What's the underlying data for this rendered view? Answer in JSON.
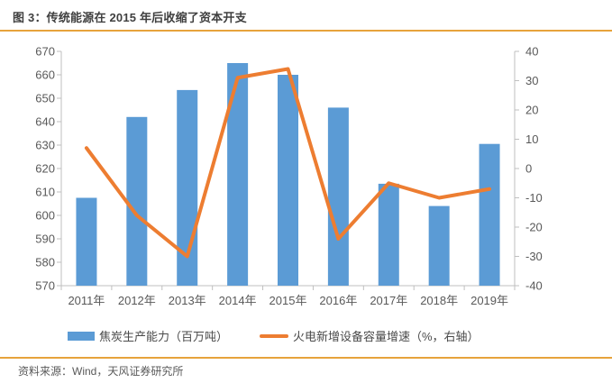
{
  "title": "图 3：传统能源在 2015 年后收缩了资本开支",
  "footer": {
    "source": "资料来源：Wind，天风证券研究所"
  },
  "colors": {
    "bar": "#5B9BD5",
    "line": "#ED7D31",
    "divider": "#E7A33C",
    "axis_line": "#BFBFBF",
    "tick_text": "#595959",
    "title_text": "#3F3F3F"
  },
  "chart_data": {
    "type": "bar",
    "subtype": "bar-and-line-dual-axis",
    "categories": [
      "2011年",
      "2012年",
      "2013年",
      "2014年",
      "2015年",
      "2016年",
      "2017年",
      "2018年",
      "2019年"
    ],
    "series": [
      {
        "name": "焦炭生产能力（百万吨）",
        "type": "bar",
        "axis": "left",
        "values": [
          607.5,
          642,
          653.5,
          665,
          660,
          646,
          613.5,
          604,
          630.5
        ]
      },
      {
        "name": "火电新增设备容量增速（%，右轴）",
        "type": "line",
        "axis": "right",
        "values": [
          7,
          -16,
          -30,
          31,
          34,
          -24,
          -5,
          -10,
          -7
        ]
      }
    ],
    "left_axis": {
      "min": 570,
      "max": 670,
      "step": 10,
      "ticks": [
        670,
        660,
        650,
        640,
        630,
        620,
        610,
        600,
        590,
        580,
        570
      ]
    },
    "right_axis": {
      "min": -40,
      "max": 40,
      "step": 10,
      "ticks": [
        40,
        30,
        20,
        10,
        0,
        -10,
        -20,
        -30,
        -40
      ]
    },
    "grid": false,
    "legend_position": "bottom"
  }
}
